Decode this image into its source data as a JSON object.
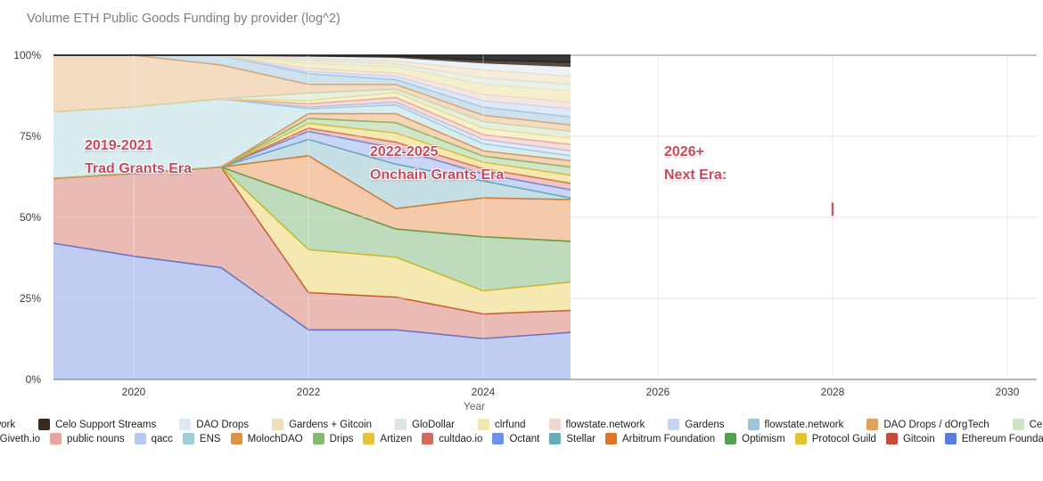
{
  "title": "Volume ETH Public Goods Funding by provider (log^2)",
  "x_axis": {
    "label": "Year",
    "ticks": [
      2020,
      2022,
      2024,
      2026,
      2028,
      2030
    ]
  },
  "y_axis": {
    "ticks": [
      {
        "label": "100%",
        "value": 100
      },
      {
        "label": "75%",
        "value": 75
      },
      {
        "label": "50%",
        "value": 50
      },
      {
        "label": "25%",
        "value": 25
      },
      {
        "label": "0%",
        "value": 0
      }
    ]
  },
  "annotations": [
    {
      "line1": "2019-2021",
      "line2": "Trad Grants Era"
    },
    {
      "line1": "2022-2025",
      "line2": "Onchain Grants Era"
    },
    {
      "line1": "2026+",
      "line2": "Next Era:"
    }
  ],
  "marker": {
    "year": 2028,
    "percent": 52.5,
    "color": "#c45c66"
  },
  "chart_data": {
    "type": "area",
    "stacked": true,
    "unit": "percent of total",
    "title": "Volume ETH Public Goods Funding by provider (log^2)",
    "xlabel": "Year",
    "ylabel": "",
    "ylim": [
      0,
      100
    ],
    "xlim": [
      2019,
      2030
    ],
    "grid": true,
    "legend_position": "bottom",
    "years": [
      2019,
      2020,
      2021,
      2022,
      2023,
      2024,
      2025
    ],
    "series": [
      {
        "name": "Ethereum Foundation",
        "color": "#597ce0",
        "values": [
          42,
          38,
          34.5,
          15.3,
          15.3,
          12.6,
          14.5
        ]
      },
      {
        "name": "Gitcoin",
        "color": "#c84b3d",
        "values": [
          20,
          25.5,
          31,
          11.5,
          10.1,
          7.6,
          6.8
        ]
      },
      {
        "name": "Protocol Guild",
        "color": "#e5c230",
        "values": [
          0,
          0,
          0,
          13.2,
          12.3,
          7.1,
          8.7
        ]
      },
      {
        "name": "Optimism",
        "color": "#53a050",
        "values": [
          0,
          0,
          0,
          16,
          8.7,
          16.7,
          12.6
        ]
      },
      {
        "name": "Arbitrum Foundation",
        "color": "#e2741f",
        "values": [
          0,
          0,
          0,
          13,
          6.3,
          12,
          12.9
        ]
      },
      {
        "name": "Stellar",
        "color": "#68acb8",
        "values": [
          0,
          0,
          0,
          5,
          13.7,
          5.2,
          0.5
        ]
      },
      {
        "name": "Octant",
        "color": "#6e90e8",
        "values": [
          0,
          0,
          0,
          2.5,
          4.9,
          2.2,
          2.5
        ]
      },
      {
        "name": "cultdao.io",
        "color": "#d36a5e",
        "values": [
          0,
          0,
          0,
          1,
          1.9,
          1.6,
          2
        ]
      },
      {
        "name": "Artizen",
        "color": "#e7c335",
        "values": [
          0,
          0,
          0,
          1.5,
          2.8,
          2,
          2.5
        ]
      },
      {
        "name": "Drips",
        "color": "#85ba70",
        "values": [
          0,
          0,
          0,
          1.5,
          3.2,
          1.9,
          2.5
        ]
      },
      {
        "name": "MolochDAO",
        "color": "#dd9142",
        "values": [
          0,
          0,
          0,
          1.5,
          2.8,
          1.6,
          2
        ]
      },
      {
        "name": "ENS",
        "color": "#9ad0d8",
        "values": [
          20.5,
          20.5,
          21,
          1.5,
          2.7,
          2.2,
          1.5
        ]
      },
      {
        "name": "qacc",
        "color": "#b9c8f2",
        "values": [
          0,
          0,
          0,
          0.5,
          0.8,
          1.3,
          1.5
        ]
      },
      {
        "name": "public nouns",
        "color": "#e8a49e",
        "values": [
          0,
          0,
          0,
          1,
          1.5,
          1.5,
          2
        ]
      },
      {
        "name": "Giveth.io",
        "color": "#eedc82",
        "values": [
          0,
          0,
          0,
          1,
          1.5,
          2,
          2
        ]
      },
      {
        "name": "Celo Public Goods",
        "color": "#cfe3c5",
        "fill_opacity": 0.55,
        "values": [
          0,
          0,
          0,
          2.3,
          1,
          2,
          2
        ]
      },
      {
        "name": "DAO Drops / dOrgTech",
        "color": "#e0a25e",
        "values": [
          17.5,
          16,
          10.5,
          2.7,
          1.5,
          2,
          2
        ]
      },
      {
        "name": "flowstate.network",
        "color": "#9ec4dc",
        "fill_opacity": 0.5,
        "values": [
          0,
          0,
          3,
          3.3,
          1.5,
          2.5,
          2.5
        ]
      },
      {
        "name": "Gardens",
        "color": "#c3d5f2",
        "fill_opacity": 0.55,
        "values": [
          0,
          0,
          0,
          0.7,
          1,
          2,
          2.5
        ]
      },
      {
        "name": "flowstate.network",
        "color": "#eed6d1",
        "fill_opacity": 0.6,
        "values": [
          0,
          0,
          0,
          1,
          1,
          2,
          2
        ]
      },
      {
        "name": "clrfund",
        "color": "#f0e6b4",
        "fill_opacity": 0.65,
        "values": [
          0,
          0,
          0,
          1.5,
          2,
          3,
          3.5
        ]
      },
      {
        "name": "GloDollar",
        "color": "#dbe7dd",
        "fill_opacity": 0.6,
        "values": [
          0,
          0,
          0,
          0.8,
          0.8,
          2,
          2
        ]
      },
      {
        "name": "Gardens + Gitcoin",
        "color": "#f0ddb9",
        "fill_opacity": 0.55,
        "values": [
          0,
          0,
          0,
          0.7,
          0.9,
          2.5,
          2.5
        ]
      },
      {
        "name": "DAO Drops",
        "color": "#dde9f3",
        "fill_opacity": 0.6,
        "values": [
          0,
          0,
          0,
          0.6,
          1,
          2,
          2.9
        ]
      },
      {
        "name": "Celo Support Streams",
        "color": "#3a2b20",
        "fill_opacity": 0.85,
        "values": [
          0,
          0,
          0,
          0.2,
          0.5,
          1,
          1.4
        ]
      },
      {
        "name": "Bloom Network",
        "color": "#1c1c1c",
        "fill_opacity": 0.88,
        "values": [
          0,
          0,
          0,
          0.2,
          0.3,
          1.5,
          2.2
        ]
      }
    ],
    "legend_rows": [
      [
        25,
        24,
        23,
        22,
        21,
        20,
        19,
        18,
        17,
        16,
        15
      ],
      [
        14,
        13,
        12,
        11,
        10,
        9,
        8,
        7,
        6,
        5,
        4,
        3,
        2,
        1,
        0
      ]
    ]
  }
}
